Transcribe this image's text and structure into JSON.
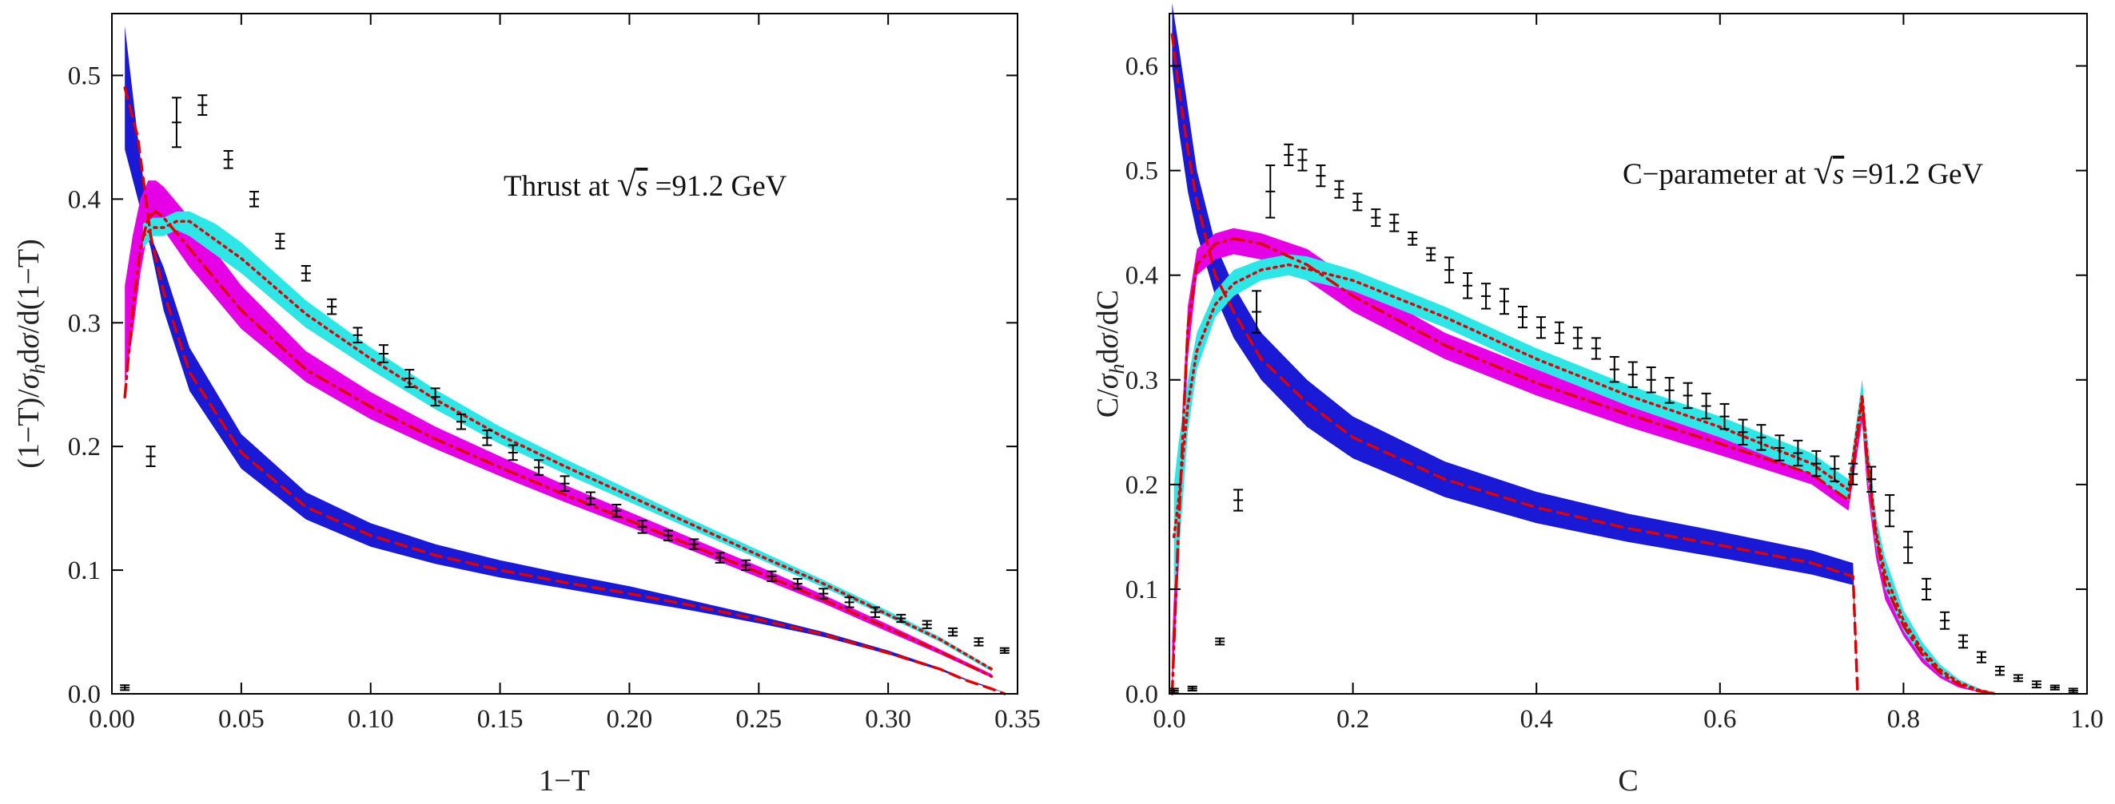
{
  "chart_data": [
    {
      "type": "line",
      "annotation": {
        "prefix": "Thrust at",
        "sqrt_symbol": "√",
        "var": "s",
        "suffix": "=91.2 GeV"
      },
      "xlabel": "1−T",
      "ylabel": "(1−T)/σ_h dσ/d(1−T)",
      "xlim": [
        0,
        0.35
      ],
      "ylim": [
        0,
        0.55
      ],
      "xticks": [
        "0.00",
        "0.05",
        "0.10",
        "0.15",
        "0.20",
        "0.25",
        "0.30",
        "0.35"
      ],
      "yticks": [
        "0.0",
        "0.1",
        "0.2",
        "0.3",
        "0.4",
        "0.5"
      ],
      "colors": {
        "blue": "#1a1ad6",
        "magenta": "#e600e6",
        "cyan": "#2ee6e6",
        "red": "#e00000",
        "data": "#000000"
      },
      "bands": [
        {
          "name": "blue band",
          "x": [
            0.005,
            0.01,
            0.015,
            0.02,
            0.03,
            0.05,
            0.075,
            0.1,
            0.125,
            0.15,
            0.175,
            0.2,
            0.225,
            0.25,
            0.275,
            0.3,
            0.32,
            0.33,
            0.34,
            0.345
          ],
          "lo": [
            0.44,
            0.4,
            0.36,
            0.31,
            0.245,
            0.182,
            0.141,
            0.119,
            0.105,
            0.094,
            0.085,
            0.076,
            0.067,
            0.057,
            0.046,
            0.032,
            0.019,
            0.011,
            0.004,
            0.001
          ],
          "hi": [
            0.54,
            0.45,
            0.37,
            0.345,
            0.28,
            0.21,
            0.163,
            0.138,
            0.121,
            0.108,
            0.097,
            0.087,
            0.075,
            0.063,
            0.05,
            0.035,
            0.021,
            0.012,
            0.005,
            0.001
          ]
        },
        {
          "name": "magenta band",
          "x": [
            0.005,
            0.008,
            0.011,
            0.014,
            0.017,
            0.02,
            0.03,
            0.05,
            0.075,
            0.1,
            0.125,
            0.15,
            0.175,
            0.2,
            0.225,
            0.25,
            0.275,
            0.3,
            0.32,
            0.34
          ],
          "lo": [
            0.25,
            0.29,
            0.34,
            0.375,
            0.38,
            0.375,
            0.345,
            0.295,
            0.252,
            0.222,
            0.198,
            0.176,
            0.155,
            0.135,
            0.115,
            0.094,
            0.073,
            0.05,
            0.032,
            0.013
          ],
          "hi": [
            0.33,
            0.37,
            0.4,
            0.415,
            0.415,
            0.41,
            0.385,
            0.33,
            0.277,
            0.244,
            0.216,
            0.192,
            0.169,
            0.147,
            0.125,
            0.103,
            0.08,
            0.056,
            0.036,
            0.016
          ]
        },
        {
          "name": "cyan band",
          "x": [
            0.012,
            0.016,
            0.02,
            0.025,
            0.03,
            0.04,
            0.05,
            0.075,
            0.1,
            0.125,
            0.15,
            0.175,
            0.2,
            0.225,
            0.25,
            0.275,
            0.3,
            0.32,
            0.34
          ],
          "lo": [
            0.36,
            0.37,
            0.37,
            0.375,
            0.37,
            0.355,
            0.34,
            0.296,
            0.262,
            0.23,
            0.202,
            0.178,
            0.155,
            0.132,
            0.109,
            0.086,
            0.062,
            0.042,
            0.018
          ],
          "hi": [
            0.38,
            0.385,
            0.385,
            0.39,
            0.39,
            0.38,
            0.365,
            0.318,
            0.28,
            0.246,
            0.216,
            0.19,
            0.165,
            0.14,
            0.116,
            0.092,
            0.067,
            0.046,
            0.021
          ]
        }
      ],
      "curves": [
        {
          "name": "red dashed",
          "style": "dashed",
          "x": [
            0.005,
            0.01,
            0.015,
            0.02,
            0.03,
            0.05,
            0.075,
            0.1,
            0.125,
            0.15,
            0.175,
            0.2,
            0.225,
            0.25,
            0.275,
            0.3,
            0.32,
            0.33,
            0.34,
            0.345
          ],
          "y": [
            0.49,
            0.45,
            0.37,
            0.325,
            0.26,
            0.195,
            0.151,
            0.128,
            0.112,
            0.1,
            0.09,
            0.081,
            0.071,
            0.06,
            0.048,
            0.033,
            0.02,
            0.011,
            0.004,
            0.0
          ]
        },
        {
          "name": "red dash-dot",
          "style": "dashdot",
          "x": [
            0.005,
            0.008,
            0.011,
            0.014,
            0.017,
            0.02,
            0.03,
            0.05,
            0.075,
            0.1,
            0.125,
            0.15,
            0.175,
            0.2,
            0.225,
            0.25,
            0.275,
            0.3,
            0.32,
            0.34
          ],
          "y": [
            0.24,
            0.31,
            0.36,
            0.385,
            0.39,
            0.385,
            0.36,
            0.31,
            0.262,
            0.232,
            0.206,
            0.183,
            0.161,
            0.14,
            0.119,
            0.098,
            0.076,
            0.053,
            0.034,
            0.014
          ]
        },
        {
          "name": "red dotted",
          "style": "dotted",
          "x": [
            0.012,
            0.016,
            0.02,
            0.025,
            0.03,
            0.04,
            0.05,
            0.075,
            0.1,
            0.125,
            0.15,
            0.175,
            0.2,
            0.225,
            0.25,
            0.275,
            0.3,
            0.32,
            0.34
          ],
          "y": [
            0.37,
            0.377,
            0.377,
            0.382,
            0.382,
            0.367,
            0.352,
            0.307,
            0.271,
            0.238,
            0.209,
            0.184,
            0.16,
            0.136,
            0.112,
            0.089,
            0.064,
            0.044,
            0.02
          ]
        }
      ],
      "data_points": {
        "x": [
          0.005,
          0.015,
          0.025,
          0.035,
          0.045,
          0.055,
          0.065,
          0.075,
          0.085,
          0.095,
          0.105,
          0.115,
          0.125,
          0.135,
          0.145,
          0.155,
          0.165,
          0.175,
          0.185,
          0.195,
          0.205,
          0.215,
          0.225,
          0.235,
          0.245,
          0.255,
          0.265,
          0.275,
          0.285,
          0.295,
          0.305,
          0.315,
          0.325,
          0.335,
          0.345
        ],
        "y": [
          0.005,
          0.192,
          0.462,
          0.476,
          0.432,
          0.4,
          0.366,
          0.34,
          0.313,
          0.29,
          0.275,
          0.255,
          0.24,
          0.22,
          0.207,
          0.195,
          0.183,
          0.17,
          0.158,
          0.148,
          0.135,
          0.128,
          0.121,
          0.11,
          0.104,
          0.095,
          0.089,
          0.081,
          0.074,
          0.066,
          0.061,
          0.056,
          0.05,
          0.042,
          0.035
        ],
        "err": [
          0.002,
          0.008,
          0.02,
          0.008,
          0.007,
          0.006,
          0.006,
          0.006,
          0.006,
          0.006,
          0.007,
          0.007,
          0.007,
          0.006,
          0.006,
          0.006,
          0.006,
          0.006,
          0.005,
          0.005,
          0.005,
          0.004,
          0.004,
          0.004,
          0.004,
          0.004,
          0.004,
          0.004,
          0.004,
          0.004,
          0.003,
          0.003,
          0.003,
          0.003,
          0.002
        ]
      }
    },
    {
      "type": "line",
      "annotation": {
        "prefix": "C−parameter at",
        "sqrt_symbol": "√",
        "var": "s",
        "suffix": "=91.2 GeV"
      },
      "xlabel": "C",
      "ylabel": "C/σ_h dσ/dC",
      "xlim": [
        0,
        1.0
      ],
      "ylim": [
        0,
        0.65
      ],
      "xticks": [
        "0.0",
        "0.2",
        "0.4",
        "0.6",
        "0.8",
        "1.0"
      ],
      "yticks": [
        "0.0",
        "0.1",
        "0.2",
        "0.3",
        "0.4",
        "0.5",
        "0.6"
      ],
      "colors": {
        "blue": "#1a1ad6",
        "magenta": "#e600e6",
        "cyan": "#2ee6e6",
        "red": "#e00000",
        "data": "#000000"
      },
      "bands": [
        {
          "name": "blue band",
          "x": [
            0.003,
            0.01,
            0.02,
            0.03,
            0.05,
            0.07,
            0.1,
            0.15,
            0.2,
            0.3,
            0.4,
            0.5,
            0.6,
            0.7,
            0.745,
            0.75
          ],
          "lo": [
            0.6,
            0.54,
            0.48,
            0.44,
            0.38,
            0.34,
            0.3,
            0.255,
            0.225,
            0.188,
            0.163,
            0.145,
            0.13,
            0.114,
            0.104,
            0.0
          ],
          "hi": [
            0.66,
            0.62,
            0.56,
            0.5,
            0.43,
            0.39,
            0.345,
            0.3,
            0.265,
            0.222,
            0.193,
            0.172,
            0.155,
            0.137,
            0.125,
            0.0
          ]
        },
        {
          "name": "magenta band",
          "x": [
            0.003,
            0.01,
            0.02,
            0.03,
            0.05,
            0.07,
            0.1,
            0.15,
            0.2,
            0.3,
            0.4,
            0.5,
            0.6,
            0.7,
            0.74,
            0.755,
            0.76,
            0.77,
            0.78,
            0.8,
            0.82,
            0.84,
            0.86,
            0.88,
            0.9
          ],
          "lo": [
            0.0,
            0.12,
            0.32,
            0.4,
            0.415,
            0.42,
            0.415,
            0.395,
            0.365,
            0.32,
            0.285,
            0.255,
            0.228,
            0.2,
            0.175,
            0.26,
            0.2,
            0.13,
            0.09,
            0.055,
            0.03,
            0.015,
            0.006,
            0.002,
            0.0
          ],
          "hi": [
            0.05,
            0.2,
            0.37,
            0.425,
            0.44,
            0.445,
            0.44,
            0.425,
            0.395,
            0.345,
            0.31,
            0.28,
            0.25,
            0.22,
            0.195,
            0.3,
            0.25,
            0.17,
            0.12,
            0.075,
            0.045,
            0.025,
            0.012,
            0.004,
            0.0
          ]
        },
        {
          "name": "cyan band",
          "x": [
            0.005,
            0.01,
            0.02,
            0.03,
            0.05,
            0.07,
            0.1,
            0.13,
            0.15,
            0.2,
            0.3,
            0.4,
            0.5,
            0.6,
            0.7,
            0.74,
            0.755,
            0.76,
            0.77,
            0.78,
            0.8,
            0.82,
            0.84,
            0.86,
            0.88,
            0.9
          ],
          "lo": [
            0.1,
            0.13,
            0.25,
            0.31,
            0.36,
            0.38,
            0.395,
            0.4,
            0.395,
            0.385,
            0.35,
            0.31,
            0.275,
            0.245,
            0.21,
            0.185,
            0.27,
            0.21,
            0.14,
            0.1,
            0.06,
            0.035,
            0.018,
            0.008,
            0.003,
            0.0
          ],
          "hi": [
            0.2,
            0.24,
            0.3,
            0.345,
            0.385,
            0.405,
            0.415,
            0.42,
            0.418,
            0.405,
            0.37,
            0.33,
            0.295,
            0.265,
            0.23,
            0.205,
            0.3,
            0.25,
            0.17,
            0.13,
            0.08,
            0.05,
            0.028,
            0.014,
            0.006,
            0.0
          ]
        }
      ],
      "curves": [
        {
          "name": "red dashed",
          "style": "dashed",
          "x": [
            0.003,
            0.01,
            0.02,
            0.03,
            0.05,
            0.07,
            0.1,
            0.15,
            0.2,
            0.3,
            0.4,
            0.5,
            0.6,
            0.7,
            0.745,
            0.75
          ],
          "y": [
            0.63,
            0.58,
            0.52,
            0.47,
            0.4,
            0.365,
            0.32,
            0.278,
            0.245,
            0.205,
            0.178,
            0.158,
            0.142,
            0.125,
            0.112,
            0.0
          ]
        },
        {
          "name": "red dash-dot",
          "style": "dashdot",
          "x": [
            0.003,
            0.01,
            0.02,
            0.03,
            0.05,
            0.07,
            0.1,
            0.15,
            0.2,
            0.3,
            0.4,
            0.5,
            0.6,
            0.7,
            0.74,
            0.755,
            0.76,
            0.77,
            0.78,
            0.8,
            0.82,
            0.84,
            0.86,
            0.88,
            0.9
          ],
          "y": [
            0.0,
            0.16,
            0.35,
            0.41,
            0.43,
            0.435,
            0.43,
            0.41,
            0.38,
            0.333,
            0.297,
            0.267,
            0.239,
            0.21,
            0.185,
            0.28,
            0.225,
            0.15,
            0.105,
            0.065,
            0.038,
            0.02,
            0.009,
            0.003,
            0.0
          ]
        },
        {
          "name": "red dotted",
          "style": "dotted",
          "x": [
            0.005,
            0.01,
            0.02,
            0.03,
            0.05,
            0.07,
            0.1,
            0.13,
            0.15,
            0.2,
            0.3,
            0.4,
            0.5,
            0.6,
            0.7,
            0.74,
            0.755,
            0.76,
            0.77,
            0.78,
            0.8,
            0.82,
            0.84,
            0.86,
            0.88,
            0.9
          ],
          "y": [
            0.15,
            0.185,
            0.275,
            0.328,
            0.372,
            0.392,
            0.405,
            0.41,
            0.406,
            0.395,
            0.36,
            0.32,
            0.285,
            0.255,
            0.22,
            0.195,
            0.285,
            0.23,
            0.155,
            0.115,
            0.07,
            0.042,
            0.023,
            0.011,
            0.004,
            0.0
          ]
        }
      ],
      "data_points": {
        "x": [
          0.005,
          0.025,
          0.055,
          0.075,
          0.095,
          0.11,
          0.13,
          0.145,
          0.165,
          0.185,
          0.205,
          0.225,
          0.245,
          0.265,
          0.285,
          0.305,
          0.325,
          0.345,
          0.365,
          0.385,
          0.405,
          0.425,
          0.445,
          0.465,
          0.485,
          0.505,
          0.525,
          0.545,
          0.565,
          0.585,
          0.605,
          0.625,
          0.645,
          0.665,
          0.685,
          0.705,
          0.725,
          0.745,
          0.765,
          0.785,
          0.805,
          0.825,
          0.845,
          0.865,
          0.885,
          0.905,
          0.925,
          0.945,
          0.965,
          0.985
        ],
        "y": [
          0.003,
          0.005,
          0.05,
          0.185,
          0.365,
          0.48,
          0.515,
          0.51,
          0.495,
          0.482,
          0.47,
          0.455,
          0.45,
          0.435,
          0.42,
          0.405,
          0.39,
          0.38,
          0.375,
          0.36,
          0.35,
          0.345,
          0.34,
          0.33,
          0.31,
          0.305,
          0.3,
          0.29,
          0.285,
          0.275,
          0.265,
          0.25,
          0.245,
          0.235,
          0.23,
          0.22,
          0.215,
          0.21,
          0.205,
          0.175,
          0.14,
          0.1,
          0.07,
          0.05,
          0.035,
          0.022,
          0.015,
          0.009,
          0.006,
          0.003
        ],
        "err": [
          0.002,
          0.002,
          0.003,
          0.01,
          0.02,
          0.025,
          0.01,
          0.01,
          0.01,
          0.008,
          0.008,
          0.008,
          0.008,
          0.006,
          0.006,
          0.012,
          0.012,
          0.012,
          0.012,
          0.01,
          0.01,
          0.01,
          0.01,
          0.01,
          0.012,
          0.012,
          0.012,
          0.012,
          0.012,
          0.012,
          0.012,
          0.012,
          0.012,
          0.012,
          0.012,
          0.012,
          0.012,
          0.01,
          0.012,
          0.015,
          0.015,
          0.01,
          0.008,
          0.006,
          0.005,
          0.004,
          0.003,
          0.003,
          0.002,
          0.002
        ]
      }
    }
  ]
}
